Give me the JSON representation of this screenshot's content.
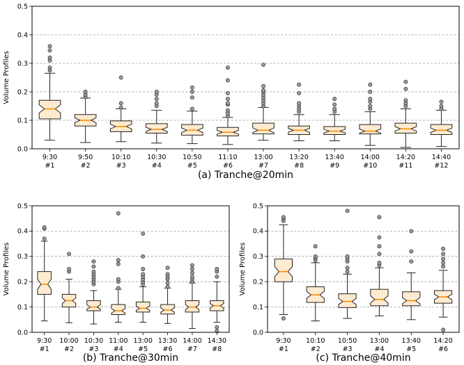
{
  "chart_data": [
    {
      "type": "boxplot",
      "caption": "(a) Tranche@20min",
      "ylabel": "Volume Profiles",
      "ylim": [
        0,
        0.5
      ],
      "yticks": [
        "0.0",
        "0.1",
        "0.2",
        "0.3",
        "0.4",
        "0.5"
      ],
      "grid": "horizontal dashed",
      "categories": [
        {
          "time": "9:30",
          "index": "#1"
        },
        {
          "time": "9:50",
          "index": "#2"
        },
        {
          "time": "10:10",
          "index": "#3"
        },
        {
          "time": "10:30",
          "index": "#4"
        },
        {
          "time": "10:50",
          "index": "#5"
        },
        {
          "time": "11:10",
          "index": "#6"
        },
        {
          "time": "13:00",
          "index": "#7"
        },
        {
          "time": "13:20",
          "index": "#8"
        },
        {
          "time": "13:40",
          "index": "#9"
        },
        {
          "time": "14:00",
          "index": "#10"
        },
        {
          "time": "14:20",
          "index": "#11"
        },
        {
          "time": "14:40",
          "index": "#12"
        }
      ],
      "boxes": [
        {
          "whislo": 0.03,
          "q1": 0.105,
          "med": 0.14,
          "q3": 0.17,
          "whishi": 0.265,
          "fliers": [
            0.275,
            0.285,
            0.31,
            0.32,
            0.345,
            0.36
          ]
        },
        {
          "whislo": 0.022,
          "q1": 0.08,
          "med": 0.1,
          "q3": 0.12,
          "whishi": 0.178,
          "fliers": [
            0.182,
            0.19,
            0.2
          ]
        },
        {
          "whislo": 0.025,
          "q1": 0.06,
          "med": 0.078,
          "q3": 0.098,
          "whishi": 0.14,
          "fliers": [
            0.145,
            0.16,
            0.25
          ]
        },
        {
          "whislo": 0.02,
          "q1": 0.055,
          "med": 0.068,
          "q3": 0.088,
          "whishi": 0.135,
          "fliers": [
            0.15,
            0.16,
            0.175,
            0.19,
            0.2
          ]
        },
        {
          "whislo": 0.018,
          "q1": 0.048,
          "med": 0.065,
          "q3": 0.085,
          "whishi": 0.132,
          "fliers": [
            0.14,
            0.18,
            0.2,
            0.215
          ]
        },
        {
          "whislo": 0.015,
          "q1": 0.045,
          "med": 0.058,
          "q3": 0.075,
          "whishi": 0.11,
          "fliers": [
            0.115,
            0.125,
            0.135,
            0.155,
            0.16,
            0.175,
            0.195,
            0.24,
            0.285
          ]
        },
        {
          "whislo": 0.03,
          "q1": 0.052,
          "med": 0.065,
          "q3": 0.09,
          "whishi": 0.145,
          "fliers": [
            0.15,
            0.16,
            0.17,
            0.18,
            0.19,
            0.2,
            0.205,
            0.22,
            0.295
          ]
        },
        {
          "whislo": 0.028,
          "q1": 0.05,
          "med": 0.065,
          "q3": 0.08,
          "whishi": 0.12,
          "fliers": [
            0.13,
            0.14,
            0.15,
            0.16,
            0.195,
            0.225
          ]
        },
        {
          "whislo": 0.028,
          "q1": 0.05,
          "med": 0.062,
          "q3": 0.078,
          "whishi": 0.12,
          "fliers": [
            0.13,
            0.14,
            0.155,
            0.175
          ]
        },
        {
          "whislo": 0.012,
          "q1": 0.052,
          "med": 0.062,
          "q3": 0.085,
          "whishi": 0.13,
          "fliers": [
            0.14,
            0.15,
            0.165,
            0.175,
            0.2,
            0.225
          ]
        },
        {
          "whislo": 0.005,
          "q1": 0.055,
          "med": 0.07,
          "q3": 0.09,
          "whishi": 0.14,
          "fliers": [
            0.15,
            0.16,
            0.17,
            0.21,
            0.235
          ]
        },
        {
          "whislo": 0.008,
          "q1": 0.05,
          "med": 0.065,
          "q3": 0.085,
          "whishi": 0.135,
          "fliers": [
            0.14,
            0.15,
            0.165
          ]
        }
      ]
    },
    {
      "type": "boxplot",
      "caption": "(b) Tranche@30min",
      "ylabel": "Volume Profiles",
      "ylim": [
        0,
        0.5
      ],
      "yticks": [
        "0.0",
        "0.1",
        "0.2",
        "0.3",
        "0.4",
        "0.5"
      ],
      "grid": "horizontal dashed",
      "categories": [
        {
          "time": "9:30",
          "index": "#1"
        },
        {
          "time": "10:00",
          "index": "#2"
        },
        {
          "time": "10:30",
          "index": "#3"
        },
        {
          "time": "11:00",
          "index": "#4"
        },
        {
          "time": "13:00",
          "index": "#5"
        },
        {
          "time": "13:30",
          "index": "#6"
        },
        {
          "time": "14:00",
          "index": "#7"
        },
        {
          "time": "14:30",
          "index": "#8"
        }
      ],
      "boxes": [
        {
          "whislo": 0.045,
          "q1": 0.15,
          "med": 0.19,
          "q3": 0.24,
          "whishi": 0.36,
          "fliers": [
            0.37,
            0.41,
            0.415
          ]
        },
        {
          "whislo": 0.038,
          "q1": 0.1,
          "med": 0.125,
          "q3": 0.15,
          "whishi": 0.21,
          "fliers": [
            0.24,
            0.25,
            0.31
          ]
        },
        {
          "whislo": 0.033,
          "q1": 0.085,
          "med": 0.1,
          "q3": 0.125,
          "whishi": 0.165,
          "fliers": [
            0.19,
            0.2,
            0.21,
            0.22,
            0.23,
            0.24,
            0.26,
            0.28
          ]
        },
        {
          "whislo": 0.04,
          "q1": 0.07,
          "med": 0.085,
          "q3": 0.11,
          "whishi": 0.17,
          "fliers": [
            0.175,
            0.2,
            0.21,
            0.27,
            0.285,
            0.47
          ]
        },
        {
          "whislo": 0.04,
          "q1": 0.08,
          "med": 0.095,
          "q3": 0.12,
          "whishi": 0.18,
          "fliers": [
            0.19,
            0.2,
            0.21,
            0.22,
            0.23,
            0.25,
            0.3,
            0.39
          ]
        },
        {
          "whislo": 0.035,
          "q1": 0.072,
          "med": 0.088,
          "q3": 0.11,
          "whishi": 0.175,
          "fliers": [
            0.18,
            0.195,
            0.21,
            0.22,
            0.23,
            0.255
          ]
        },
        {
          "whislo": 0.015,
          "q1": 0.08,
          "med": 0.1,
          "q3": 0.125,
          "whishi": 0.195,
          "fliers": [
            0.2,
            0.21,
            0.22,
            0.235,
            0.25,
            0.265
          ]
        },
        {
          "whislo": 0.04,
          "q1": 0.085,
          "med": 0.105,
          "q3": 0.125,
          "whishi": 0.2,
          "fliers": [
            0.005,
            0.02,
            0.22,
            0.24,
            0.25
          ]
        }
      ]
    },
    {
      "type": "boxplot",
      "caption": "(c) Tranche@40min",
      "ylabel": "Volume Profiles",
      "ylim": [
        0,
        0.5
      ],
      "yticks": [
        "0.0",
        "0.1",
        "0.2",
        "0.3",
        "0.4",
        "0.5"
      ],
      "grid": "horizontal dashed",
      "categories": [
        {
          "time": "9:30",
          "index": "#1"
        },
        {
          "time": "10:10",
          "index": "#2"
        },
        {
          "time": "10:50",
          "index": "#3"
        },
        {
          "time": "13:00",
          "index": "#4"
        },
        {
          "time": "13:40",
          "index": "#5"
        },
        {
          "time": "14:20",
          "index": "#6"
        }
      ],
      "boxes": [
        {
          "whislo": 0.07,
          "q1": 0.2,
          "med": 0.24,
          "q3": 0.29,
          "whishi": 0.425,
          "fliers": [
            0.055,
            0.44,
            0.45,
            0.455
          ]
        },
        {
          "whislo": 0.045,
          "q1": 0.118,
          "med": 0.148,
          "q3": 0.18,
          "whishi": 0.275,
          "fliers": [
            0.285,
            0.295,
            0.3,
            0.34
          ]
        },
        {
          "whislo": 0.055,
          "q1": 0.098,
          "med": 0.122,
          "q3": 0.152,
          "whishi": 0.23,
          "fliers": [
            0.24,
            0.255,
            0.28,
            0.29,
            0.3,
            0.48
          ]
        },
        {
          "whislo": 0.065,
          "q1": 0.105,
          "med": 0.13,
          "q3": 0.17,
          "whishi": 0.255,
          "fliers": [
            0.265,
            0.275,
            0.31,
            0.34,
            0.375,
            0.455
          ]
        },
        {
          "whislo": 0.05,
          "q1": 0.105,
          "med": 0.125,
          "q3": 0.16,
          "whishi": 0.235,
          "fliers": [
            0.28,
            0.32,
            0.4
          ]
        },
        {
          "whislo": 0.06,
          "q1": 0.115,
          "med": 0.14,
          "q3": 0.165,
          "whishi": 0.245,
          "fliers": [
            0.01,
            0.26,
            0.275,
            0.29,
            0.31,
            0.33
          ]
        }
      ]
    }
  ],
  "colors": {
    "box_fill": "#fdebd0",
    "box_edge": "#222222",
    "median": "#ff8c00",
    "flier_fill": "#9a9a9a",
    "grid": "#9a9a9a"
  }
}
